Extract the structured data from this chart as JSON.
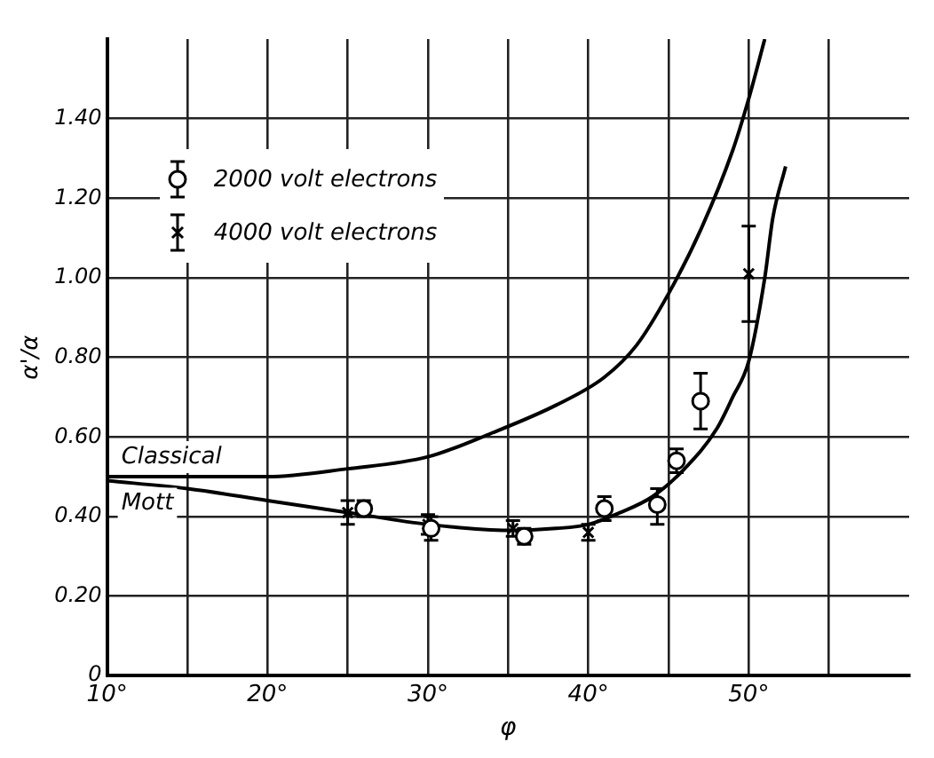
{
  "chart_data": {
    "type": "scatter",
    "xlabel": "φ",
    "ylabel": "α'/α",
    "xlim": [
      10,
      60
    ],
    "xticks": [
      {
        "value": 10,
        "label": "10°"
      },
      {
        "value": 15,
        "label": null
      },
      {
        "value": 20,
        "label": "20°"
      },
      {
        "value": 25,
        "label": null
      },
      {
        "value": 30,
        "label": "30°"
      },
      {
        "value": 35,
        "label": null
      },
      {
        "value": 40,
        "label": "40°"
      },
      {
        "value": 45,
        "label": null
      },
      {
        "value": 50,
        "label": "50°"
      },
      {
        "value": 55,
        "label": null
      }
    ],
    "ylim": [
      0,
      1.6
    ],
    "yticks": [
      {
        "value": 0,
        "label": "0"
      },
      {
        "value": 0.2,
        "label": "0.20"
      },
      {
        "value": 0.4,
        "label": "0.40"
      },
      {
        "value": 0.6,
        "label": "0.60"
      },
      {
        "value": 0.8,
        "label": "0.80"
      },
      {
        "value": 1.0,
        "label": "1.00"
      },
      {
        "value": 1.2,
        "label": "1.20"
      },
      {
        "value": 1.4,
        "label": "1.40"
      }
    ],
    "grid": true,
    "legend": "top left",
    "series": [
      {
        "name": "2000 volt electrons",
        "type": "scatter",
        "marker": "circle",
        "color": "#000000",
        "x": [
          26,
          30.2,
          36,
          41,
          44.3,
          45.5,
          47
        ],
        "values": [
          0.42,
          0.37,
          0.35,
          0.42,
          0.43,
          0.54,
          0.69
        ],
        "errors": [
          [
            0.4,
            0.44
          ],
          [
            0.34,
            0.4
          ],
          [
            0.33,
            0.37
          ],
          [
            0.39,
            0.45
          ],
          [
            0.38,
            0.47
          ],
          [
            0.51,
            0.57
          ],
          [
            0.62,
            0.76
          ]
        ]
      },
      {
        "name": "4000 volt electrons",
        "type": "scatter",
        "marker": "cross",
        "color": "#000000",
        "x": [
          25,
          30,
          35.3,
          40,
          50
        ],
        "values": [
          0.41,
          0.38,
          0.37,
          0.36,
          1.01
        ],
        "errors": [
          [
            0.38,
            0.44
          ],
          [
            0.355,
            0.405
          ],
          [
            0.35,
            0.39
          ],
          [
            0.34,
            0.38
          ],
          [
            0.89,
            1.13
          ]
        ]
      },
      {
        "name": "Classical",
        "type": "line",
        "marker": "none",
        "color": "#000000",
        "x": [
          10,
          15,
          20,
          25,
          30,
          34,
          38,
          41,
          43,
          45,
          47,
          49,
          50,
          51
        ],
        "values": [
          0.5,
          0.5,
          0.5,
          0.52,
          0.55,
          0.61,
          0.68,
          0.75,
          0.83,
          0.96,
          1.12,
          1.32,
          1.45,
          1.6
        ]
      },
      {
        "name": "Mott",
        "type": "line",
        "marker": "none",
        "color": "#000000",
        "x": [
          10,
          15,
          20,
          25,
          30,
          35,
          38,
          40,
          42,
          44,
          46,
          48,
          49,
          50,
          51,
          51.5,
          52.3
        ],
        "values": [
          0.49,
          0.47,
          0.44,
          0.41,
          0.38,
          0.365,
          0.37,
          0.38,
          0.41,
          0.45,
          0.52,
          0.62,
          0.7,
          0.79,
          1.0,
          1.15,
          1.28
        ]
      }
    ]
  }
}
